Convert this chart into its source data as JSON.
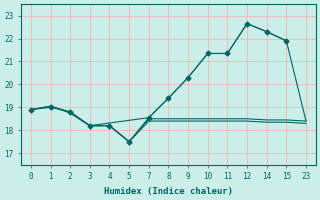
{
  "xlabel": "Humidex (Indice chaleur)",
  "bg_color": "#cceee8",
  "line_color": "#006666",
  "grid_color": "#ffaaaa",
  "xtick_labels": [
    "0",
    "1",
    "2",
    "3",
    "4",
    "5",
    "7",
    "8",
    "9",
    "10",
    "11",
    "12",
    "14",
    "15",
    "23"
  ],
  "yticks": [
    17,
    18,
    19,
    20,
    21,
    22,
    23
  ],
  "xlim": [
    -0.5,
    14.5
  ],
  "ylim": [
    16.5,
    23.5
  ],
  "line_with_markers_x": [
    0,
    1,
    2,
    3,
    4,
    5,
    6,
    7,
    8,
    9,
    10,
    11,
    12,
    13
  ],
  "line_with_markers_y": [
    18.9,
    19.0,
    18.8,
    18.2,
    18.2,
    17.5,
    18.55,
    19.4,
    20.3,
    21.35,
    21.35,
    22.65,
    22.3,
    21.9
  ],
  "line_upper_x": [
    0,
    1,
    2,
    3,
    6,
    7,
    8,
    9,
    10,
    11,
    12,
    13,
    14
  ],
  "line_upper_y": [
    18.9,
    19.05,
    18.8,
    18.2,
    18.55,
    19.4,
    20.3,
    21.35,
    21.35,
    22.65,
    22.3,
    21.9,
    18.4
  ],
  "line_mid_x": [
    0,
    1,
    2,
    3,
    4,
    5,
    6,
    7,
    8,
    9,
    10,
    11,
    12,
    13,
    14
  ],
  "line_mid_y": [
    18.9,
    19.05,
    18.75,
    18.2,
    18.2,
    17.5,
    18.5,
    18.5,
    18.5,
    18.5,
    18.5,
    18.5,
    18.45,
    18.45,
    18.4
  ],
  "line_lower_x": [
    2,
    3,
    4,
    5,
    6,
    7,
    8,
    9,
    10,
    11,
    12,
    13,
    14
  ],
  "line_lower_y": [
    18.75,
    18.2,
    18.2,
    17.5,
    18.4,
    18.4,
    18.4,
    18.4,
    18.4,
    18.4,
    18.35,
    18.35,
    18.3
  ]
}
